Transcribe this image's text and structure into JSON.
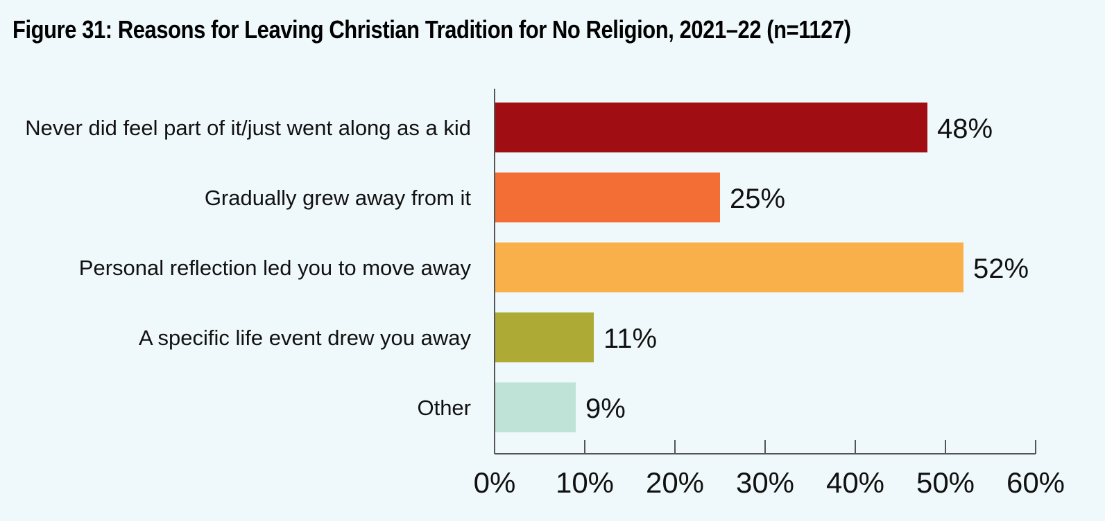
{
  "chart_data": {
    "type": "bar",
    "orientation": "horizontal",
    "title": "Figure 31: Reasons for Leaving Christian Tradition for No Religion, 2021–22 (n=1127)",
    "categories": [
      "Never did feel part of it/just went along as a kid",
      "Gradually grew away from it",
      "Personal reflection led you to move away",
      "A specific life event drew you away",
      "Other"
    ],
    "values": [
      48,
      25,
      52,
      11,
      9
    ],
    "value_labels": [
      "48%",
      "25%",
      "52%",
      "11%",
      "9%"
    ],
    "colors": [
      "#a00d12",
      "#f26e35",
      "#f9b04a",
      "#adab35",
      "#bfe3d6"
    ],
    "xlim": [
      0,
      60
    ],
    "xticks": [
      0,
      10,
      20,
      30,
      40,
      50,
      60
    ],
    "xtick_labels": [
      "0%",
      "10%",
      "20%",
      "30%",
      "40%",
      "50%",
      "60%"
    ],
    "xlabel": "",
    "ylabel": "",
    "grid": false,
    "legend": "none"
  }
}
